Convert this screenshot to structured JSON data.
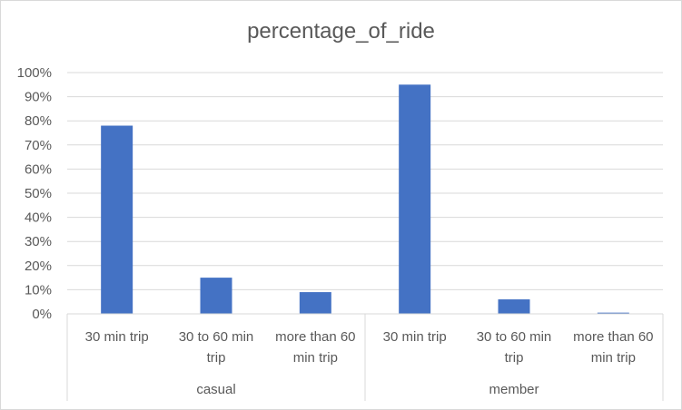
{
  "chart_data": {
    "type": "bar",
    "title": "percentage_of_ride",
    "groups": [
      {
        "name": "casual",
        "categories": [
          "30 min trip",
          "30 to 60 min trip",
          "more than 60 min trip"
        ],
        "values": [
          0.78,
          0.15,
          0.09
        ]
      },
      {
        "name": "member",
        "categories": [
          "30 min trip",
          "30 to 60 min trip",
          "more than 60 min trip"
        ],
        "values": [
          0.95,
          0.06,
          0.005
        ]
      }
    ],
    "category_labels": [
      [
        "30 min trip"
      ],
      [
        "30 to 60 min",
        "trip"
      ],
      [
        "more than 60",
        "min trip"
      ]
    ],
    "ylim": [
      0,
      1
    ],
    "yticks": [
      "0%",
      "10%",
      "20%",
      "30%",
      "40%",
      "50%",
      "60%",
      "70%",
      "80%",
      "90%",
      "100%"
    ],
    "grid": true,
    "legend": "none",
    "bar_color": "#4472c4"
  }
}
